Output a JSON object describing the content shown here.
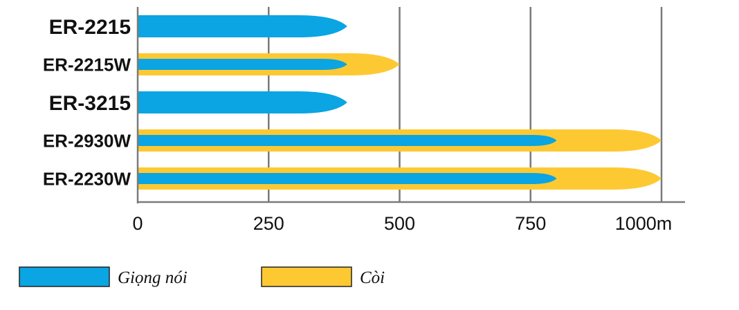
{
  "chart_data": {
    "type": "bar",
    "orientation": "horizontal",
    "categories": [
      "ER-2215",
      "ER-2215W",
      "ER-3215",
      "ER-2930W",
      "ER-2230W"
    ],
    "series": [
      {
        "name": "Giọng nói",
        "color": "#0aa5e2",
        "values": [
          400,
          400,
          400,
          800,
          800
        ]
      },
      {
        "name": "Còi",
        "color": "#fdc933",
        "values": [
          null,
          500,
          null,
          1000,
          1000
        ]
      }
    ],
    "x_ticks": [
      {
        "value": 0,
        "label": "0"
      },
      {
        "value": 250,
        "label": "250"
      },
      {
        "value": 500,
        "label": "500"
      },
      {
        "value": 750,
        "label": "750"
      },
      {
        "value": 1000,
        "label": "1000m"
      }
    ],
    "xlim": [
      0,
      1000
    ],
    "grid": "vertical",
    "legend_position": "bottom"
  }
}
